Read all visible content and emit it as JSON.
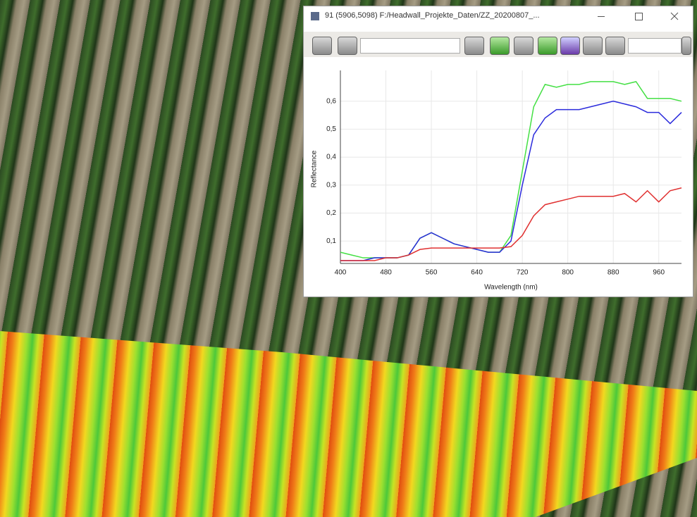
{
  "window": {
    "title": "91 (5906,5098) F:/Headwall_Projekte_Daten/ZZ_20200807_..."
  },
  "chart_data": {
    "type": "line",
    "xlabel": "Wavelength (nm)",
    "ylabel": "Reflectance",
    "x": [
      400,
      420,
      440,
      460,
      480,
      500,
      520,
      540,
      560,
      580,
      600,
      620,
      640,
      660,
      680,
      700,
      720,
      740,
      760,
      780,
      800,
      820,
      840,
      860,
      880,
      900,
      920,
      940,
      960,
      980,
      1000
    ],
    "series": [
      {
        "color": "#44e044",
        "values": [
          0.06,
          0.05,
          0.04,
          0.04,
          0.04,
          0.04,
          0.05,
          0.11,
          0.13,
          0.11,
          0.09,
          0.08,
          0.07,
          0.06,
          0.06,
          0.12,
          0.35,
          0.58,
          0.66,
          0.65,
          0.66,
          0.66,
          0.67,
          0.67,
          0.67,
          0.66,
          0.67,
          0.61,
          0.61,
          0.61,
          0.6
        ]
      },
      {
        "color": "#2b2bdc",
        "values": [
          0.03,
          0.03,
          0.03,
          0.04,
          0.04,
          0.04,
          0.05,
          0.11,
          0.13,
          0.11,
          0.09,
          0.08,
          0.07,
          0.06,
          0.06,
          0.1,
          0.3,
          0.48,
          0.54,
          0.57,
          0.57,
          0.57,
          0.58,
          0.59,
          0.6,
          0.59,
          0.58,
          0.56,
          0.56,
          0.52,
          0.56
        ]
      },
      {
        "color": "#e03030",
        "values": [
          0.03,
          0.03,
          0.03,
          0.03,
          0.04,
          0.04,
          0.05,
          0.07,
          0.075,
          0.075,
          0.075,
          0.075,
          0.075,
          0.075,
          0.075,
          0.08,
          0.12,
          0.19,
          0.23,
          0.24,
          0.25,
          0.26,
          0.26,
          0.26,
          0.26,
          0.27,
          0.24,
          0.28,
          0.24,
          0.28,
          0.29
        ]
      }
    ],
    "xlim": [
      400,
      1000
    ],
    "ylim": [
      0.02,
      0.71
    ],
    "xticks": [
      400,
      480,
      560,
      640,
      720,
      800,
      880,
      960
    ],
    "yticks": [
      {
        "value": 0.1,
        "label": "0,1"
      },
      {
        "value": 0.2,
        "label": "0,2"
      },
      {
        "value": 0.3,
        "label": "0,3"
      },
      {
        "value": 0.4,
        "label": "0,4"
      },
      {
        "value": 0.5,
        "label": "0,5"
      },
      {
        "value": 0.6,
        "label": "0,6"
      }
    ],
    "grid": true
  }
}
